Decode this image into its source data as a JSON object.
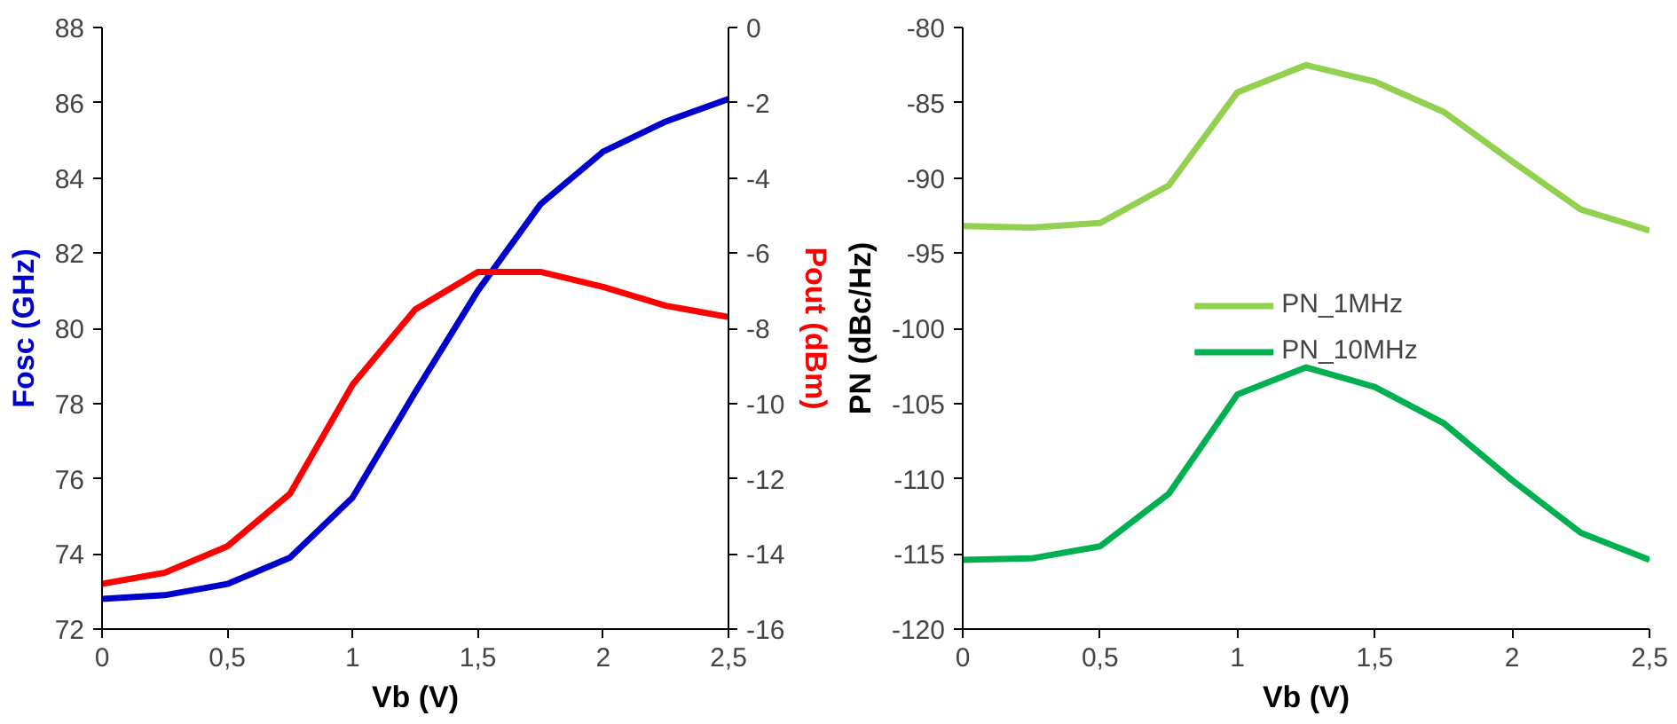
{
  "chart_data": [
    {
      "type": "line",
      "xlabel": "Vb (V)",
      "ylabel": "Fosc (GHz)",
      "y2label": "Pout (dBm)",
      "x": [
        0,
        0.25,
        0.5,
        0.75,
        1,
        1.25,
        1.5,
        1.75,
        2,
        2.25,
        2.5
      ],
      "xlim": [
        0,
        2.5
      ],
      "xticks": [
        0,
        {
          "value": 0.5,
          "label": "0,5"
        },
        1,
        {
          "value": 1.5,
          "label": "1,5"
        },
        2,
        {
          "value": 2.5,
          "label": "2,5"
        }
      ],
      "ylim": [
        72,
        88
      ],
      "yticks": [
        72,
        74,
        76,
        78,
        80,
        82,
        84,
        86,
        88
      ],
      "y2lim": [
        -16,
        0
      ],
      "y2ticks": [
        -16,
        -14,
        -12,
        -10,
        -8,
        -6,
        -4,
        -2,
        0
      ],
      "series": [
        {
          "color": "#0000cc",
          "values": [
            72.8,
            72.9,
            73.2,
            73.9,
            75.5,
            78.3,
            81.0,
            83.3,
            84.7,
            85.5,
            86.1
          ]
        },
        {
          "color": "#ff0000",
          "axis": "y2",
          "values": [
            -14.8,
            -14.5,
            -13.8,
            -12.4,
            -9.5,
            -7.5,
            -6.5,
            -6.5,
            -6.9,
            -7.4,
            -7.7
          ]
        }
      ]
    },
    {
      "type": "line",
      "xlabel": "Vb (V)",
      "ylabel": "PN (dBc/Hz)",
      "x": [
        0,
        0.25,
        0.5,
        0.75,
        1,
        1.25,
        1.5,
        1.75,
        2,
        2.25,
        2.5
      ],
      "xlim": [
        0,
        2.5
      ],
      "xticks": [
        0,
        {
          "value": 0.5,
          "label": "0,5"
        },
        1,
        {
          "value": 1.5,
          "label": "1,5"
        },
        2,
        {
          "value": 2.5,
          "label": "2,5"
        }
      ],
      "ylim": [
        -120,
        -80
      ],
      "yticks": [
        -120,
        -115,
        -110,
        -105,
        -100,
        -95,
        -90,
        -85,
        -80
      ],
      "legend": "center",
      "series": [
        {
          "name": "PN_1MHz",
          "color": "#92d050",
          "values": [
            -93.2,
            -93.3,
            -93.0,
            -90.5,
            -84.3,
            -82.5,
            -83.6,
            -85.6,
            -88.9,
            -92.1,
            -93.5
          ]
        },
        {
          "name": "PN_10MHz",
          "color": "#00b050",
          "values": [
            -115.4,
            -115.3,
            -114.5,
            -111.0,
            -104.4,
            -102.6,
            -103.9,
            -106.3,
            -110.1,
            -113.6,
            -115.4
          ]
        }
      ]
    }
  ]
}
